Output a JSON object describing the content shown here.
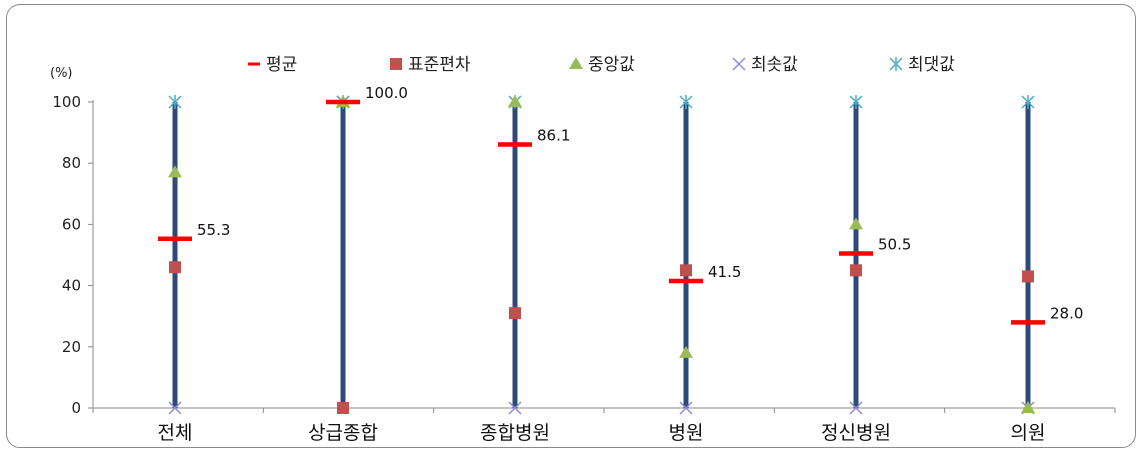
{
  "chart_data": {
    "type": "scatter",
    "title": "",
    "xlabel": "",
    "ylabel": "(%)",
    "ylim": [
      0,
      100
    ],
    "yticks": [
      0,
      20,
      40,
      60,
      80,
      100
    ],
    "grid": false,
    "legend_position": "top",
    "categories": [
      "전체",
      "상급종합",
      "종합병원",
      "병원",
      "정신병원",
      "의원"
    ],
    "series": [
      {
        "name": "평균",
        "marker": "bar",
        "color": "#ff0000",
        "values": [
          55.3,
          100.0,
          86.1,
          41.5,
          50.5,
          28.0
        ]
      },
      {
        "name": "표준편차",
        "marker": "square",
        "color": "#c0504d",
        "values": [
          46,
          0,
          31,
          45,
          45,
          43
        ]
      },
      {
        "name": "중앙값",
        "marker": "triangle",
        "color": "#9bbb59",
        "values": [
          77,
          100,
          100,
          18,
          60,
          0
        ]
      },
      {
        "name": "최솟값",
        "marker": "x",
        "color": "#8c8cd4",
        "values": [
          0,
          100,
          0,
          0,
          0,
          0
        ]
      },
      {
        "name": "최댓값",
        "marker": "star",
        "color": "#4bacc6",
        "values": [
          100,
          100,
          100,
          100,
          100,
          100
        ]
      }
    ],
    "range_line_color": "#2e4a7a",
    "data_labels": [
      "55.3",
      "100.0",
      "86.1",
      "41.5",
      "50.5",
      "28.0"
    ]
  }
}
